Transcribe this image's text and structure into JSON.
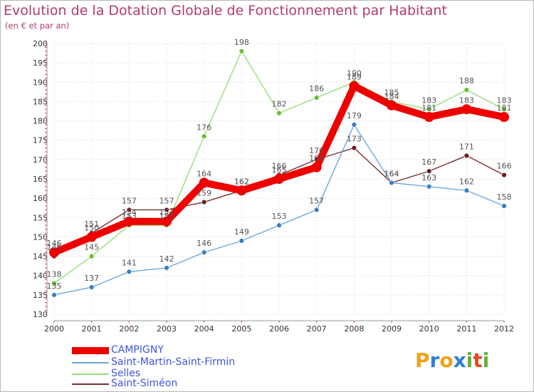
{
  "title": "Evolution de la Dotation Globale de Fonctionnement par Habitant",
  "subtitle": "(en € et par an)",
  "logo": {
    "text": "Proxiti",
    "letters": [
      "P",
      "r",
      "o",
      "x",
      "i",
      "t",
      "i"
    ],
    "colors": [
      "#f2a11c",
      "#2f7fd6",
      "#f2a11c",
      "#2f7fd6",
      "#63b33a",
      "#e34b26",
      "#63b33a"
    ]
  },
  "chart_data": {
    "type": "line",
    "title": "Evolution de la Dotation Globale de Fonctionnement par Habitant",
    "subtitle": "(en € et par an)",
    "xlabel": "",
    "ylabel": "",
    "categories": [
      "2000",
      "2001",
      "2002",
      "2003",
      "2004",
      "2005",
      "2006",
      "2007",
      "2008",
      "2009",
      "2010",
      "2011",
      "2012"
    ],
    "ylim": [
      130,
      200
    ],
    "yticks": [
      130,
      135,
      140,
      145,
      150,
      155,
      160,
      165,
      170,
      175,
      180,
      185,
      190,
      195,
      200
    ],
    "grid": true,
    "legend_position": "bottom-left",
    "series": [
      {
        "name": "CAMPIGNY",
        "color": "#ee0000",
        "marker_color": "#ee0000",
        "emphasis": true,
        "values": [
          146,
          150,
          154,
          154,
          164,
          162,
          165,
          168,
          189,
          184,
          181,
          183,
          181
        ],
        "labels": [
          "146",
          "150",
          "154",
          "154",
          "164",
          "162",
          "165",
          "168",
          "189",
          "184",
          "181",
          "183",
          "181"
        ]
      },
      {
        "name": "Saint-Martin-Saint-Firmin",
        "color": "#6aa8dc",
        "marker_color": "#3a7ec2",
        "emphasis": false,
        "values": [
          135,
          137,
          141,
          142,
          146,
          149,
          153,
          157,
          179,
          164,
          163,
          162,
          158
        ],
        "labels": [
          "135",
          "137",
          "141",
          "142",
          "146",
          "149",
          "153",
          "157",
          "179",
          "164",
          "163",
          "162",
          "158"
        ]
      },
      {
        "name": "Selles",
        "color": "#99dd77",
        "marker_color": "#66c033",
        "emphasis": false,
        "values": [
          138,
          145,
          153,
          153,
          176,
          198,
          182,
          186,
          190,
          185,
          183,
          188,
          183
        ],
        "labels": [
          "138",
          "145",
          "153",
          "153",
          "176",
          "198",
          "182",
          "186",
          "190",
          "185",
          "183",
          "188",
          "183"
        ]
      },
      {
        "name": "Saint-Siméon",
        "color": "#7a3030",
        "marker_color": "#6a1f1f",
        "emphasis": false,
        "values": [
          145,
          151,
          157,
          157,
          159,
          162,
          166,
          170,
          173,
          164,
          167,
          171,
          166
        ],
        "labels": [
          "145",
          "151",
          "157",
          "157",
          "159",
          "162",
          "166",
          "170",
          "173",
          "164",
          "167",
          "171",
          "166"
        ]
      }
    ]
  }
}
